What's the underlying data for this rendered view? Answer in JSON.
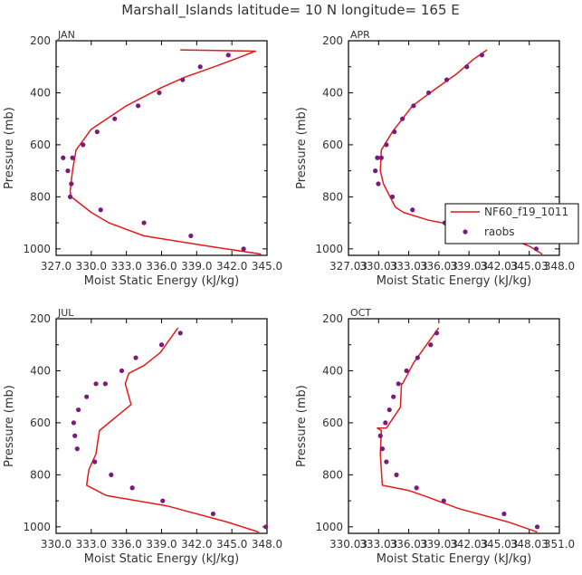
{
  "title": "Marshall_Islands  latitude= 10 N longitude= 165 E",
  "colors": {
    "model": "#e41a1c",
    "raobs": "#7b1a7b",
    "axis": "#000000"
  },
  "legend": {
    "model_label": "NF60_f19_1011",
    "raobs_label": "raobs"
  },
  "chart_data": [
    {
      "type": "line",
      "panel": "JAN",
      "xlabel": "Moist Static Energy (kJ/kg)",
      "ylabel": "Pressure (mb)",
      "xlim": [
        327.0,
        345.0
      ],
      "ylim": [
        1025,
        200
      ],
      "xticks": [
        "327.0",
        "330.0",
        "333.0",
        "336.0",
        "339.0",
        "342.0",
        "345.0"
      ],
      "yticks": [
        "200",
        "400",
        "600",
        "800",
        "1000"
      ],
      "series": [
        {
          "name": "NF60_f19_1011",
          "style": "line",
          "x": [
            344.5,
            340.0,
            334.5,
            331.5,
            330.0,
            328.3,
            328.2,
            328.4,
            328.7,
            330.0,
            333.0,
            336.0,
            338.0,
            340.5,
            342.3,
            344.0,
            337.6
          ],
          "y": [
            1020,
            990,
            950,
            900,
            860,
            800,
            780,
            700,
            620,
            540,
            450,
            380,
            340,
            300,
            270,
            240,
            235
          ]
        },
        {
          "name": "raobs",
          "style": "markers",
          "x": [
            343.0,
            338.5,
            334.5,
            330.8,
            328.2,
            328.3,
            328.0,
            327.6,
            328.4,
            329.3,
            330.5,
            332.0,
            334.0,
            335.8,
            337.8,
            339.3,
            341.7
          ],
          "y": [
            1000,
            950,
            900,
            850,
            800,
            750,
            700,
            650,
            650,
            600,
            550,
            500,
            450,
            400,
            350,
            300,
            255
          ]
        }
      ]
    },
    {
      "type": "line",
      "panel": "APR",
      "xlabel": "Moist Static Energy (kJ/kg)",
      "ylabel": "Pressure (mb)",
      "xlim": [
        327.03,
        348.0
      ],
      "ylim": [
        1025,
        200
      ],
      "xticks": [
        "327.03",
        "330.03",
        "333.03",
        "336.03",
        "339.03",
        "342.03",
        "345.03",
        "348.0"
      ],
      "yticks": [
        "200",
        "400",
        "600",
        "800",
        "1000"
      ],
      "series": [
        {
          "name": "NF60_f19_1011",
          "style": "line",
          "x": [
            346.3,
            345.0,
            342.5,
            339.0,
            335.0,
            332.5,
            331.7,
            330.5,
            330.2,
            330.3,
            331.4,
            333.4,
            335.5,
            337.7,
            339.5,
            340.8
          ],
          "y": [
            1020,
            990,
            950,
            920,
            890,
            860,
            840,
            750,
            700,
            620,
            550,
            450,
            390,
            330,
            270,
            235
          ]
        },
        {
          "name": "raobs",
          "style": "markers",
          "x": [
            345.7,
            343.2,
            336.6,
            333.4,
            331.4,
            330.0,
            329.7,
            329.9,
            330.3,
            330.8,
            331.6,
            332.4,
            333.5,
            335.0,
            336.8,
            338.8,
            340.3
          ],
          "y": [
            1000,
            950,
            900,
            850,
            800,
            750,
            700,
            650,
            650,
            600,
            550,
            500,
            450,
            400,
            350,
            300,
            255
          ]
        }
      ]
    },
    {
      "type": "line",
      "panel": "JUL",
      "xlabel": "Moist Static Energy (kJ/kg)",
      "ylabel": "Pressure (mb)",
      "xlim": [
        330.0,
        348.0
      ],
      "ylim": [
        1025,
        200
      ],
      "xticks": [
        "330.0",
        "333.0",
        "336.0",
        "339.0",
        "342.0",
        "345.0",
        "348.0"
      ],
      "yticks": [
        "200",
        "400",
        "600",
        "800",
        "1000"
      ],
      "series": [
        {
          "name": "NF60_f19_1011",
          "style": "line",
          "x": [
            347.3,
            344.5,
            339.5,
            334.3,
            332.6,
            332.8,
            333.4,
            333.7,
            336.4,
            335.9,
            336.2,
            337.5,
            338.9,
            340.4
          ],
          "y": [
            1020,
            980,
            920,
            880,
            840,
            780,
            720,
            630,
            530,
            450,
            410,
            380,
            330,
            235
          ]
        },
        {
          "name": "raobs",
          "style": "markers",
          "x": [
            347.9,
            343.4,
            339.1,
            336.5,
            334.7,
            333.3,
            331.8,
            331.6,
            331.5,
            331.9,
            332.6,
            333.4,
            334.2,
            335.6,
            336.8,
            339.0,
            340.6
          ],
          "y": [
            1000,
            950,
            900,
            850,
            800,
            750,
            700,
            650,
            600,
            550,
            500,
            450,
            450,
            400,
            350,
            300,
            255
          ]
        }
      ]
    },
    {
      "type": "line",
      "panel": "OCT",
      "xlabel": "Moist Static Energy (kJ/kg)",
      "ylabel": "Pressure (mb)",
      "xlim": [
        330.03,
        351.0
      ],
      "ylim": [
        1025,
        200
      ],
      "xticks": [
        "330.03",
        "333.03",
        "336.03",
        "339.03",
        "342.03",
        "345.03",
        "348.03",
        "351.0"
      ],
      "yticks": [
        "200",
        "400",
        "600",
        "800",
        "1000"
      ],
      "series": [
        {
          "name": "NF60_f19_1011",
          "style": "line",
          "x": [
            348.8,
            345.8,
            341.0,
            337.5,
            336.0,
            333.4,
            333.2,
            333.3,
            332.9,
            333.8,
            335.2,
            335.3,
            335.4,
            336.5,
            337.8,
            339.0
          ],
          "y": [
            1020,
            980,
            930,
            880,
            860,
            840,
            720,
            630,
            620,
            620,
            540,
            450,
            450,
            370,
            300,
            235
          ]
        },
        {
          "name": "raobs",
          "style": "markers",
          "x": [
            348.8,
            345.5,
            339.5,
            336.8,
            334.8,
            333.8,
            333.4,
            333.2,
            333.7,
            334.1,
            334.5,
            335.0,
            335.8,
            336.9,
            338.2,
            338.8
          ],
          "y": [
            1000,
            950,
            900,
            850,
            800,
            750,
            700,
            650,
            600,
            550,
            500,
            450,
            400,
            350,
            300,
            255
          ]
        }
      ]
    }
  ]
}
